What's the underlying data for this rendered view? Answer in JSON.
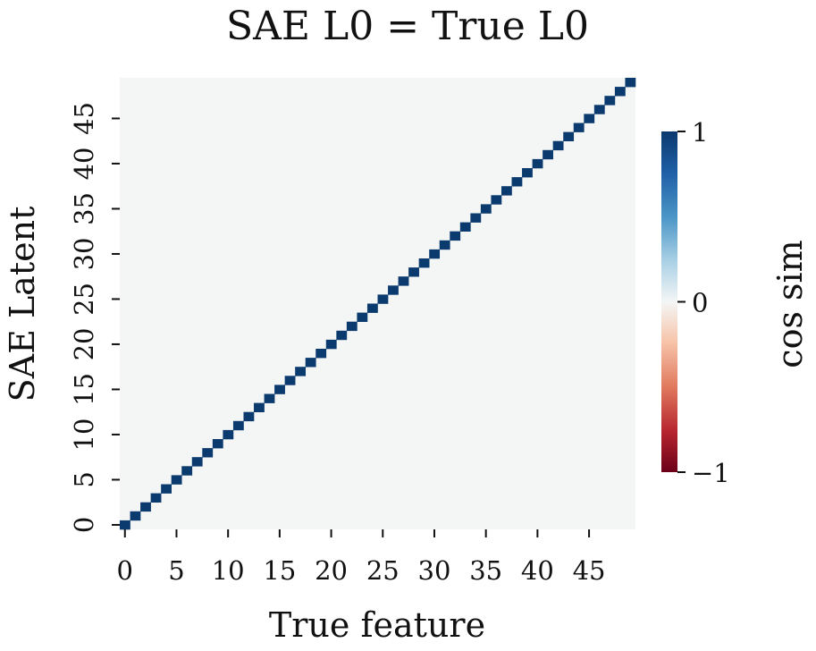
{
  "chart_data": {
    "type": "heatmap",
    "title": "SAE L0 = True L0",
    "xlabel": "True feature",
    "ylabel": "SAE Latent",
    "n": 50,
    "x_ticks": [
      "0",
      "5",
      "10",
      "15",
      "20",
      "25",
      "30",
      "35",
      "40",
      "45"
    ],
    "y_ticks": [
      "0",
      "5",
      "10",
      "15",
      "20",
      "25",
      "30",
      "35",
      "40",
      "45"
    ],
    "diagonal_value": 1,
    "off_diagonal_value": 0,
    "value_range": [
      -1,
      1
    ],
    "colormap": "RdBu",
    "colors": {
      "high": "#0b3a6e",
      "mid": "#f4f6f6",
      "low": "#6b0018"
    },
    "colorbar": {
      "label": "cos sim",
      "ticks": [
        "1",
        "0",
        "−1"
      ],
      "tick_values": [
        1,
        0,
        -1
      ]
    }
  }
}
